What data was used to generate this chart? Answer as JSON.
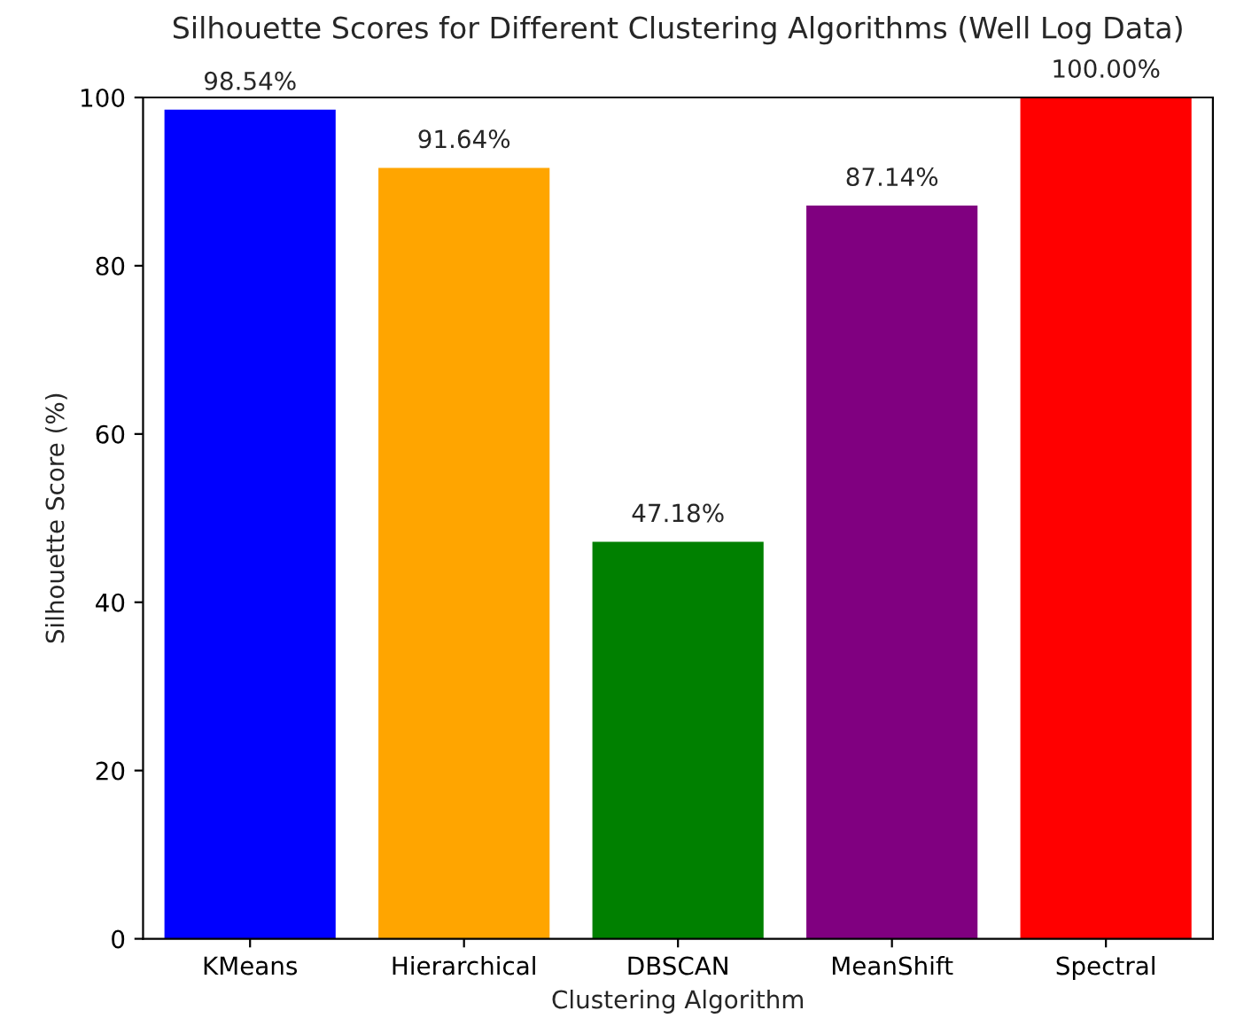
{
  "chart_data": {
    "type": "bar",
    "title": "Silhouette Scores for Different Clustering Algorithms (Well Log Data)",
    "xlabel": "Clustering Algorithm",
    "ylabel": "Silhouette Score (%)",
    "categories": [
      "KMeans",
      "Hierarchical",
      "DBSCAN",
      "MeanShift",
      "Spectral"
    ],
    "values": [
      98.54,
      91.64,
      47.18,
      87.14,
      100.0
    ],
    "value_labels": [
      "98.54%",
      "91.64%",
      "47.18%",
      "87.14%",
      "100.00%"
    ],
    "colors": [
      "#0000ff",
      "#ffa500",
      "#008000",
      "#800080",
      "#ff0000"
    ],
    "ylim": [
      0,
      100
    ],
    "yticks": [
      0,
      20,
      40,
      60,
      80,
      100
    ],
    "grid": false
  }
}
